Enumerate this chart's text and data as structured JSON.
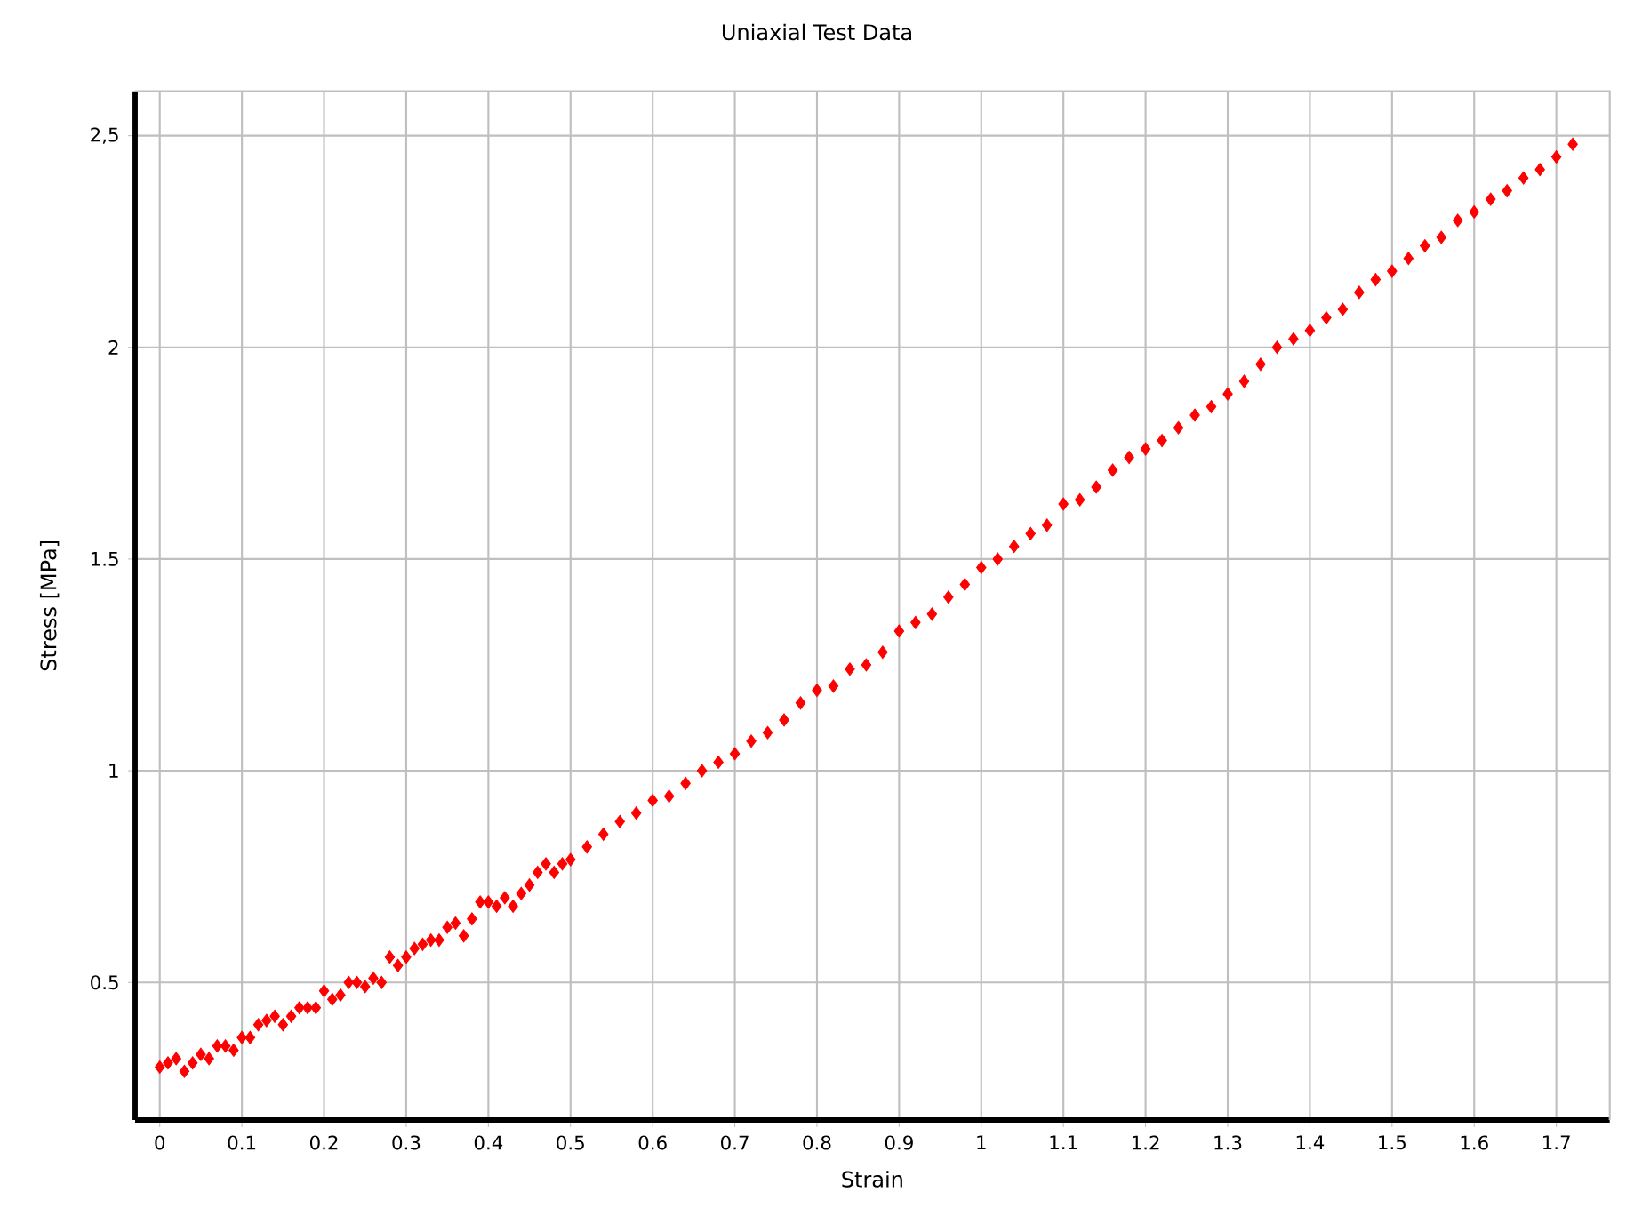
{
  "chart_data": {
    "type": "scatter",
    "title": "Uniaxial Test Data",
    "xlabel": "Strain",
    "ylabel": "Stress  [MPa]",
    "x": [
      0,
      0.01,
      0.02,
      0.03,
      0.04,
      0.05,
      0.06,
      0.07,
      0.08,
      0.09,
      0.1,
      0.11,
      0.12,
      0.13,
      0.14,
      0.15,
      0.16,
      0.17,
      0.18,
      0.19,
      0.2,
      0.21,
      0.22,
      0.23,
      0.24,
      0.25,
      0.26,
      0.27,
      0.28,
      0.29,
      0.3,
      0.31,
      0.32,
      0.33,
      0.34,
      0.35,
      0.36,
      0.37,
      0.38,
      0.39,
      0.4,
      0.41,
      0.42,
      0.43,
      0.44,
      0.45,
      0.46,
      0.47,
      0.48,
      0.49,
      0.5,
      0.52,
      0.54,
      0.56,
      0.58,
      0.6,
      0.62,
      0.64,
      0.66,
      0.68,
      0.7,
      0.72,
      0.74,
      0.76,
      0.78,
      0.8,
      0.82,
      0.84,
      0.86,
      0.88,
      0.9,
      0.92,
      0.94,
      0.96,
      0.98,
      1.0,
      1.02,
      1.04,
      1.06,
      1.08,
      1.1,
      1.12,
      1.14,
      1.16,
      1.18,
      1.2,
      1.22,
      1.24,
      1.26,
      1.28,
      1.3,
      1.32,
      1.34,
      1.36,
      1.38,
      1.4,
      1.42,
      1.44,
      1.46,
      1.48,
      1.5,
      1.52,
      1.54,
      1.56,
      1.58,
      1.6,
      1.62,
      1.64,
      1.66,
      1.68,
      1.7,
      1.72
    ],
    "series": [
      {
        "color": "#ff0000",
        "values": [
          0.3,
          0.31,
          0.32,
          0.29,
          0.31,
          0.33,
          0.32,
          0.35,
          0.35,
          0.34,
          0.37,
          0.37,
          0.4,
          0.41,
          0.42,
          0.4,
          0.42,
          0.44,
          0.44,
          0.44,
          0.48,
          0.46,
          0.47,
          0.5,
          0.5,
          0.49,
          0.51,
          0.5,
          0.56,
          0.54,
          0.56,
          0.58,
          0.59,
          0.6,
          0.6,
          0.63,
          0.64,
          0.61,
          0.65,
          0.69,
          0.69,
          0.68,
          0.7,
          0.68,
          0.71,
          0.73,
          0.76,
          0.78,
          0.76,
          0.78,
          0.79,
          0.82,
          0.85,
          0.88,
          0.9,
          0.93,
          0.94,
          0.97,
          1.0,
          1.02,
          1.04,
          1.07,
          1.09,
          1.12,
          1.16,
          1.19,
          1.2,
          1.24,
          1.25,
          1.28,
          1.33,
          1.35,
          1.37,
          1.41,
          1.44,
          1.48,
          1.5,
          1.53,
          1.56,
          1.58,
          1.63,
          1.64,
          1.67,
          1.71,
          1.74,
          1.76,
          1.78,
          1.81,
          1.84,
          1.86,
          1.89,
          1.92,
          1.96,
          2.0,
          2.02,
          2.04,
          2.07,
          2.09,
          2.13,
          2.16,
          2.18,
          2.21,
          2.24,
          2.26,
          2.3,
          2.32,
          2.35,
          2.37,
          2.4,
          2.42,
          2.45,
          2.48
        ]
      }
    ],
    "xlim": [
      -0.03,
      1.765
    ],
    "ylim": [
      0.175,
      2.605
    ],
    "xticks": [
      0,
      0.1,
      0.2,
      0.3,
      0.4,
      0.5,
      0.6,
      0.7,
      0.8,
      0.9,
      1,
      1.1,
      1.2,
      1.3,
      1.4,
      1.5,
      1.6,
      1.7
    ],
    "yticks": [
      0.5,
      1,
      1.5,
      2,
      {
        "value": 2.5,
        "label": "2,5"
      }
    ],
    "grid": true,
    "marker": "diamond"
  }
}
